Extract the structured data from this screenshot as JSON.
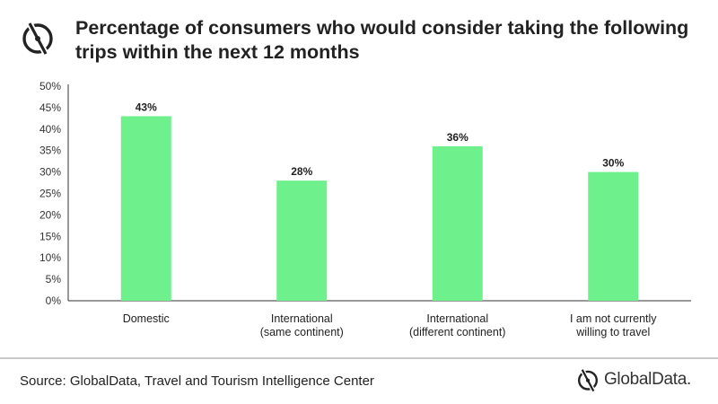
{
  "header": {
    "title": "Percentage of consumers who would consider taking the following trips within the next 12 months",
    "logo_icon": "globaldata-logo-icon"
  },
  "footer": {
    "source": "Source: GlobalData, Travel and Tourism Intelligence Center",
    "brand": "GlobalData."
  },
  "colors": {
    "bar": "#6ef08c",
    "axis": "#333333",
    "text": "#222222"
  },
  "chart_data": {
    "type": "bar",
    "title": "Percentage of consumers who would consider taking the following trips within the next 12 months",
    "categories": [
      [
        "Domestic"
      ],
      [
        "International",
        "(same continent)"
      ],
      [
        "International",
        "(different continent)"
      ],
      [
        "I am not currently",
        "willing to travel"
      ]
    ],
    "values": [
      43,
      28,
      36,
      30
    ],
    "data_labels": [
      "43%",
      "28%",
      "36%",
      "30%"
    ],
    "ylim": [
      0,
      50
    ],
    "yticks": [
      0,
      5,
      10,
      15,
      20,
      25,
      30,
      35,
      40,
      45,
      50
    ],
    "ytick_labels": [
      "0%",
      "5%",
      "10%",
      "15%",
      "20%",
      "25%",
      "30%",
      "35%",
      "40%",
      "45%",
      "50%"
    ],
    "xlabel": "",
    "ylabel": "",
    "grid": false,
    "legend": "none"
  }
}
